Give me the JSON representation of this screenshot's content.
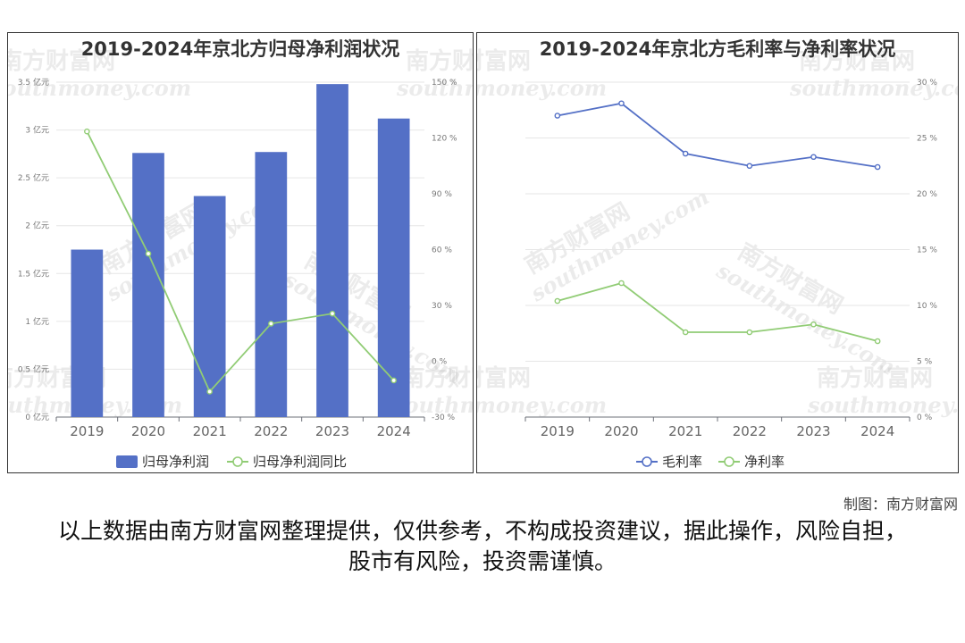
{
  "chart_data": [
    {
      "type": "bar",
      "title": "2019-2024年京北方归母净利润状况",
      "categories": [
        "2019",
        "2020",
        "2021",
        "2022",
        "2023",
        "2024"
      ],
      "series": [
        {
          "name": "归母净利润",
          "type": "bar",
          "axis": "left",
          "color": "#5470c6",
          "values": [
            1.75,
            2.76,
            2.31,
            2.77,
            3.48,
            3.12
          ]
        },
        {
          "name": "归母净利润同比",
          "type": "line",
          "axis": "right",
          "color": "#91cc75",
          "values": [
            123.5,
            57.8,
            -16.3,
            20.2,
            25.6,
            -10.3
          ]
        }
      ],
      "y_left": {
        "min": 0,
        "max": 3.5,
        "ticks": [
          "0 亿元",
          "0.5 亿元",
          "1 亿元",
          "1.5 亿元",
          "2 亿元",
          "2.5 亿元",
          "3 亿元",
          "3.5 亿元"
        ]
      },
      "y_right": {
        "min": -30,
        "max": 150,
        "ticks": [
          "-30 %",
          "0 %",
          "30 %",
          "60 %",
          "90 %",
          "120 %",
          "150 %"
        ]
      },
      "legend_position": "bottom",
      "grid": true
    },
    {
      "type": "line",
      "title": "2019-2024年京北方毛利率与净利率状况",
      "categories": [
        "2019",
        "2020",
        "2021",
        "2022",
        "2023",
        "2024"
      ],
      "series": [
        {
          "name": "毛利率",
          "axis": "right",
          "color": "#5470c6",
          "values": [
            27.0,
            28.1,
            23.6,
            22.5,
            23.3,
            22.4
          ]
        },
        {
          "name": "净利率",
          "axis": "right",
          "color": "#91cc75",
          "values": [
            10.4,
            12.0,
            7.6,
            7.6,
            8.3,
            6.8
          ]
        }
      ],
      "y_right": {
        "min": 0,
        "max": 30,
        "ticks": [
          "0 %",
          "5 %",
          "10 %",
          "15 %",
          "20 %",
          "25 %",
          "30 %"
        ]
      },
      "legend_position": "bottom",
      "grid": true
    }
  ],
  "watermark": {
    "cn": "南方财富网",
    "en": "southmoney.com"
  },
  "footer": {
    "credit": "制图：南方财富网",
    "disclaimer": "以上数据由南方财富网整理提供，仅供参考，不构成投资建议，据此操作，风险自担，股市有风险，投资需谨慎。"
  }
}
